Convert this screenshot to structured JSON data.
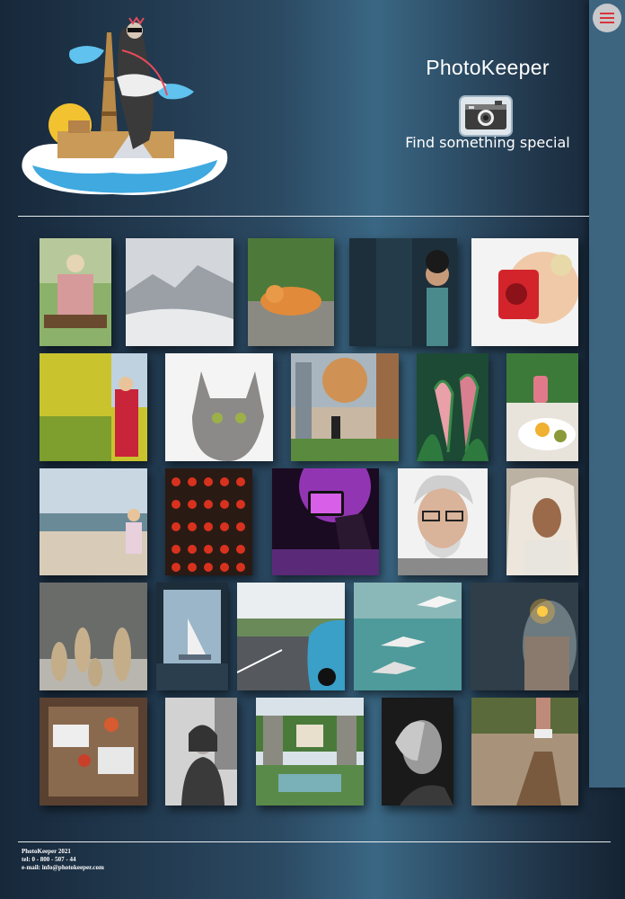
{
  "brand": {
    "title": "PhotoKeeper",
    "tagline": "Find something special"
  },
  "icons": {
    "menu": "hamburger-menu-icon",
    "camera": "camera-icon"
  },
  "colors": {
    "sidebar": "#3e6580",
    "menu_button": "#c7c9cc",
    "menu_lines": "#d9343a",
    "text": "#ffffff"
  },
  "gallery": {
    "photos": [
      {
        "name": "woman-reading-on-chair"
      },
      {
        "name": "misty-mountains"
      },
      {
        "name": "cat-on-stone"
      },
      {
        "name": "child-in-dark-doorway"
      },
      {
        "name": "child-with-red-camera"
      },
      {
        "name": "girl-in-flower-field"
      },
      {
        "name": "snowy-cat"
      },
      {
        "name": "city-street-with-trees"
      },
      {
        "name": "pink-calla-lilies"
      },
      {
        "name": "breakfast-plate"
      },
      {
        "name": "child-on-beach"
      },
      {
        "name": "red-abacus-beads"
      },
      {
        "name": "concert-phone-photo"
      },
      {
        "name": "old-man-with-glasses"
      },
      {
        "name": "man-in-hood"
      },
      {
        "name": "meerkats"
      },
      {
        "name": "sailboat-window"
      },
      {
        "name": "blue-sports-car"
      },
      {
        "name": "seagulls-over-water"
      },
      {
        "name": "woman-with-sparkler"
      },
      {
        "name": "wooden-table-workspace"
      },
      {
        "name": "smiling-woman-street"
      },
      {
        "name": "garden-villa"
      },
      {
        "name": "woman-hand-on-face"
      },
      {
        "name": "walking-on-log"
      }
    ]
  },
  "footer": {
    "line1": "PhotoKeeper 2021",
    "line2": "tel: 0 - 800 - 507 - 44",
    "line3": "e-mail: info@photokeeper.com"
  }
}
